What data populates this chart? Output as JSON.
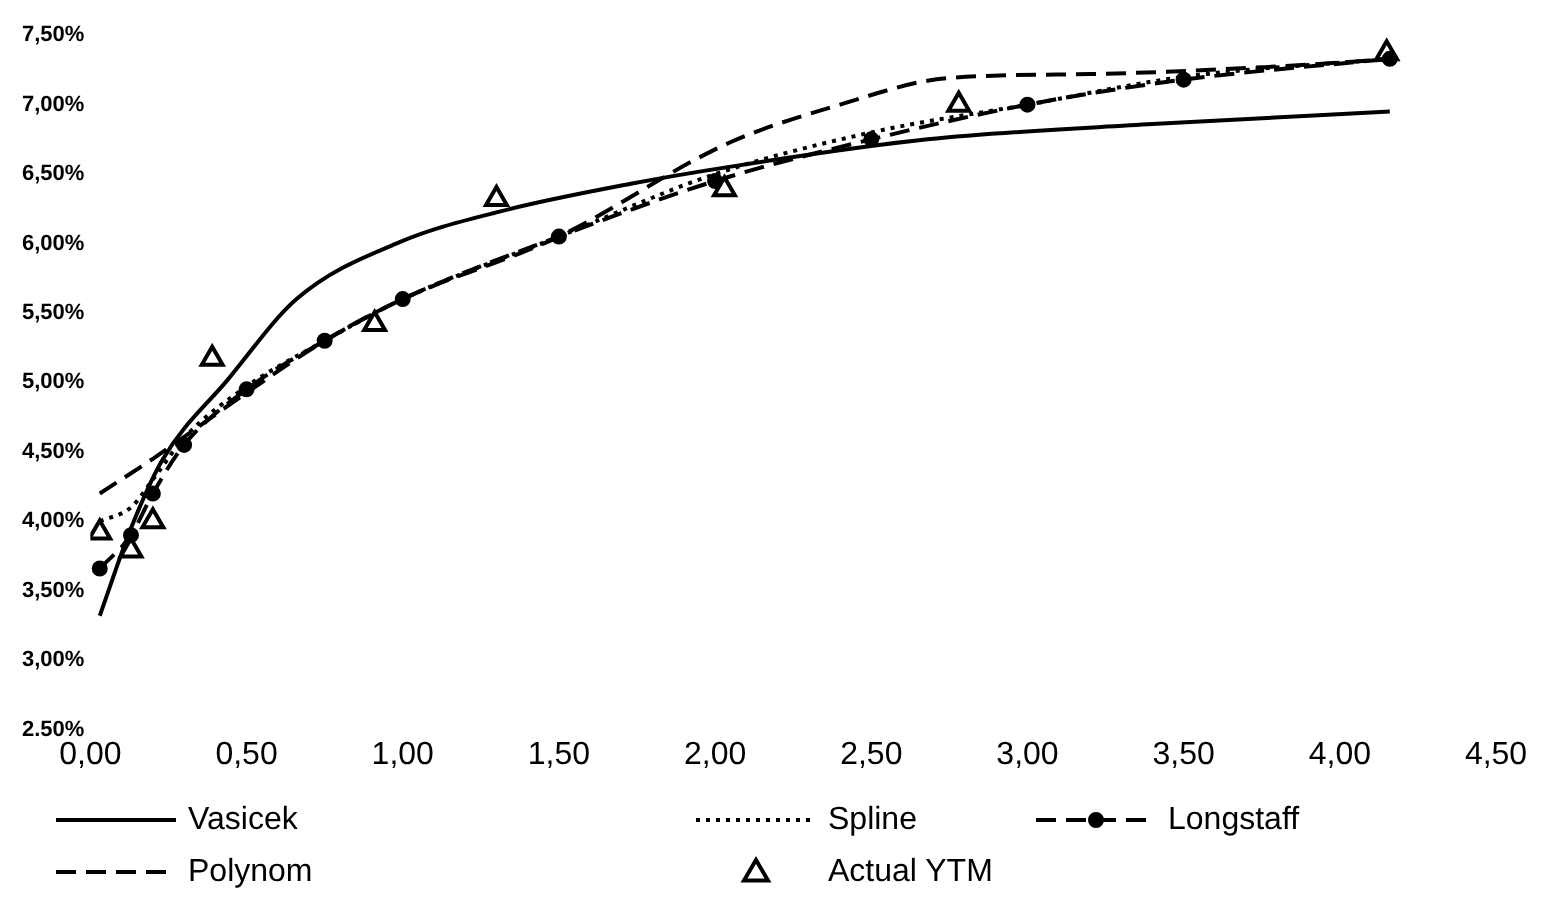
{
  "chart_data": {
    "type": "line",
    "xlim": [
      0,
      4.5
    ],
    "ylim": [
      2.5,
      7.5
    ],
    "xticks": [
      {
        "value": 0,
        "label": "0,00"
      },
      {
        "value": 0.5,
        "label": "0,50"
      },
      {
        "value": 1,
        "label": "1,00"
      },
      {
        "value": 1.5,
        "label": "1,50"
      },
      {
        "value": 2,
        "label": "2,00"
      },
      {
        "value": 2.5,
        "label": "2,50"
      },
      {
        "value": 3,
        "label": "3,00"
      },
      {
        "value": 3.5,
        "label": "3,50"
      },
      {
        "value": 4,
        "label": "4,00"
      },
      {
        "value": 4.5,
        "label": "4,50"
      }
    ],
    "yticks": [
      {
        "value": 2.5,
        "label": "2.50%"
      },
      {
        "value": 3,
        "label": "3,00%"
      },
      {
        "value": 3.5,
        "label": "3,50%"
      },
      {
        "value": 4,
        "label": "4,00%"
      },
      {
        "value": 4.5,
        "label": "4,50%"
      },
      {
        "value": 5,
        "label": "5,00%"
      },
      {
        "value": 5.5,
        "label": "5,50%"
      },
      {
        "value": 6,
        "label": "6,00%"
      },
      {
        "value": 6.5,
        "label": "6,50%"
      },
      {
        "value": 7,
        "label": "7,00%"
      },
      {
        "value": 7.5,
        "label": "7,50%"
      }
    ],
    "grid": false,
    "legend": "bottom",
    "series": [
      {
        "name": "Vasicek",
        "color": "#000000",
        "line_style": "solid",
        "marker": "none",
        "x": [
          0.03,
          0.13,
          0.23,
          0.44,
          0.66,
          0.99,
          1.31,
          1.73,
          2.04,
          2.68,
          3.4,
          4.16
        ],
        "values": [
          3.32,
          3.95,
          4.44,
          5.02,
          5.6,
          6.01,
          6.23,
          6.43,
          6.55,
          6.75,
          6.86,
          6.95
        ]
      },
      {
        "name": "Spline",
        "color": "#000000",
        "line_style": "dotted",
        "marker": "none",
        "x": [
          0.03,
          0.13,
          0.2,
          0.3,
          0.5,
          0.75,
          1.0,
          1.5,
          2.0,
          2.5,
          3.0,
          3.5,
          4.16
        ],
        "values": [
          4.0,
          4.1,
          4.3,
          4.6,
          4.97,
          5.3,
          5.6,
          6.05,
          6.5,
          6.8,
          7.0,
          7.2,
          7.33
        ]
      },
      {
        "name": "Longstaff",
        "color": "#000000",
        "line_style": "dashed",
        "marker": "circle",
        "x": [
          0.03,
          0.13,
          0.2,
          0.3,
          0.5,
          0.75,
          1.0,
          1.5,
          2.0,
          2.5,
          3.0,
          3.5,
          4.16
        ],
        "values": [
          3.66,
          3.9,
          4.2,
          4.55,
          4.95,
          5.3,
          5.6,
          6.05,
          6.45,
          6.75,
          7.0,
          7.18,
          7.33
        ]
      },
      {
        "name": "Polynom",
        "color": "#000000",
        "line_style": "dashed",
        "marker": "none",
        "x": [
          0.03,
          0.2,
          0.49,
          0.75,
          1.0,
          1.5,
          2.04,
          2.4,
          2.74,
          3.2,
          3.76,
          4.18
        ],
        "values": [
          4.2,
          4.45,
          4.91,
          5.3,
          5.6,
          6.05,
          6.72,
          7.0,
          7.19,
          7.22,
          7.27,
          7.33
        ]
      },
      {
        "name": "Actual YTM",
        "type": "scatter",
        "color": "#000000",
        "marker": "triangle",
        "x": [
          0.03,
          0.13,
          0.2,
          0.39,
          0.91,
          1.3,
          2.03,
          2.78,
          4.15
        ],
        "values": [
          3.92,
          3.79,
          4.0,
          5.17,
          5.42,
          6.32,
          6.39,
          7.0,
          7.37
        ]
      }
    ]
  }
}
